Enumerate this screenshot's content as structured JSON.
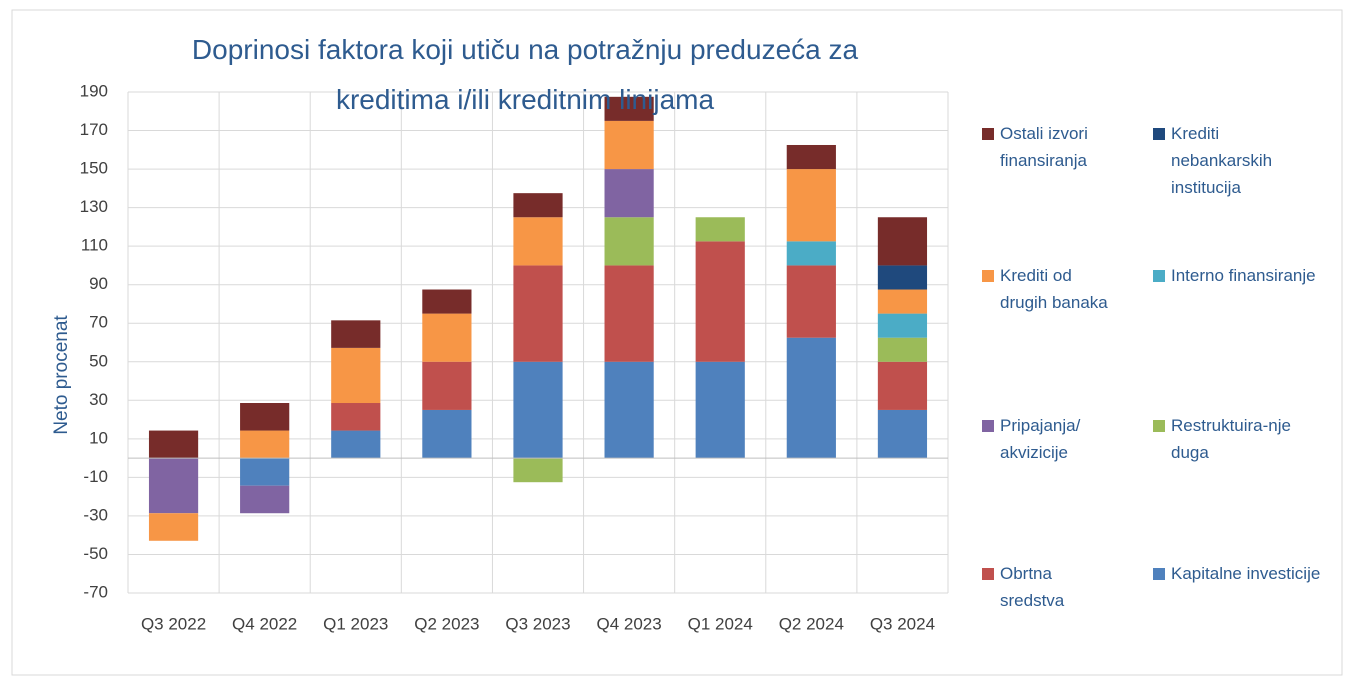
{
  "chart_data": {
    "type": "bar",
    "stacked": true,
    "title": "Doprinosi faktora koji utiču na potražnju preduzeća za kreditima i/ili kreditnim linijama",
    "y_label": "Neto procenat",
    "categories": [
      "Q3 2022",
      "Q4 2022",
      "Q1 2023",
      "Q2 2023",
      "Q3 2023",
      "Q4 2023",
      "Q1 2024",
      "Q2 2024",
      "Q3 2024"
    ],
    "ylim": [
      -70,
      190
    ],
    "yticks": [
      -70,
      -50,
      -30,
      -10,
      10,
      30,
      50,
      70,
      90,
      110,
      130,
      150,
      170,
      190
    ],
    "grid": true,
    "series": [
      {
        "name": "Kapitalne investicije",
        "color": "#4f81bd",
        "values": [
          null,
          -14.3,
          14.3,
          25,
          50,
          50,
          50,
          62.5,
          25
        ]
      },
      {
        "name": "Obrtna sredstva",
        "color": "#c0504d",
        "values": [
          null,
          null,
          14.3,
          25,
          50,
          50,
          62.5,
          37.5,
          25
        ]
      },
      {
        "name": "Restruktuira-nje duga",
        "color": "#9bbb59",
        "values": [
          null,
          null,
          null,
          null,
          -12.5,
          25,
          12.5,
          null,
          12.5
        ]
      },
      {
        "name": "Pripajanja/ akvizicije",
        "color": "#8064a2",
        "values": [
          -28.6,
          -14.3,
          null,
          null,
          null,
          25,
          null,
          null,
          null
        ]
      },
      {
        "name": "Interno finansiranje",
        "color": "#4bacc6",
        "values": [
          null,
          null,
          null,
          null,
          null,
          null,
          null,
          12.5,
          12.5
        ]
      },
      {
        "name": "Krediti od drugih banaka",
        "color": "#f79646",
        "values": [
          -14.3,
          14.3,
          28.6,
          25,
          25,
          25,
          null,
          37.5,
          12.5
        ]
      },
      {
        "name": "Krediti nebankarskih institucija",
        "color": "#1f497d",
        "values": [
          null,
          null,
          null,
          null,
          null,
          null,
          null,
          null,
          12.5
        ]
      },
      {
        "name": "Ostali izvori finansiranja",
        "color": "#772c2a",
        "values": [
          14.3,
          14.3,
          14.3,
          12.5,
          12.5,
          12.5,
          null,
          12.5,
          25
        ]
      }
    ]
  }
}
